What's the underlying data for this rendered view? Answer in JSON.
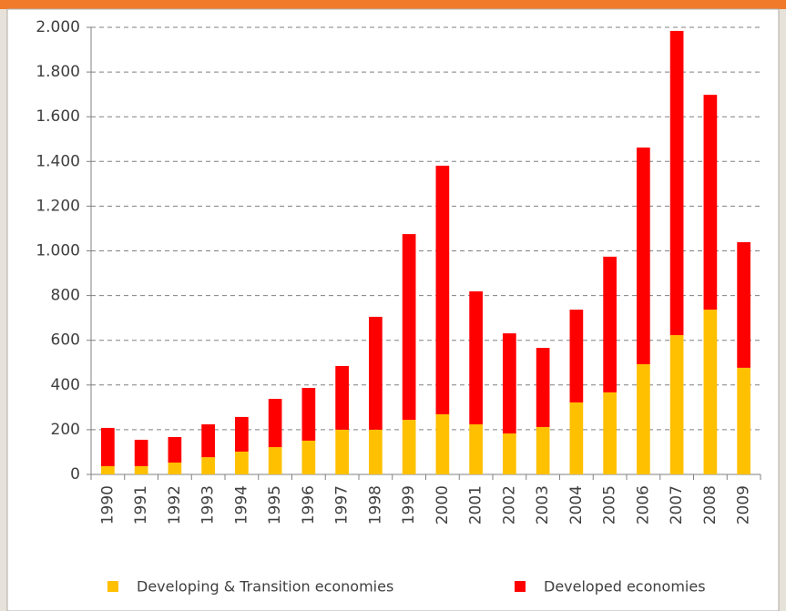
{
  "chart_data": {
    "type": "stacked_bar",
    "categories": [
      "1990",
      "1991",
      "1992",
      "1993",
      "1994",
      "1995",
      "1996",
      "1997",
      "1998",
      "1999",
      "2000",
      "2001",
      "2002",
      "2003",
      "2004",
      "2005",
      "2006",
      "2007",
      "2008",
      "2009"
    ],
    "series": [
      {
        "name": "Developing & Transition economies",
        "color": "#ffc000",
        "values": [
          37,
          37,
          53,
          77,
          102,
          122,
          151,
          200,
          200,
          244,
          269,
          224,
          183,
          212,
          322,
          367,
          493,
          623,
          737,
          477
        ]
      },
      {
        "name": "Developed economies",
        "color": "#ff0000",
        "values": [
          171,
          118,
          114,
          147,
          155,
          216,
          236,
          285,
          505,
          831,
          1112,
          595,
          448,
          354,
          415,
          607,
          969,
          1361,
          961,
          562
        ]
      }
    ],
    "ylim": [
      0,
      2000
    ],
    "yticks": [
      0,
      200,
      400,
      600,
      800,
      {
        "value": 1000,
        "label": "1.000"
      },
      {
        "value": 1200,
        "label": "1.200"
      },
      {
        "value": 1400,
        "label": "1.400"
      },
      {
        "value": 1600,
        "label": "1.600"
      },
      {
        "value": 1800,
        "label": "1.800"
      },
      {
        "value": 2000,
        "label": "2.000"
      }
    ],
    "grid": true,
    "legend": "bottom"
  }
}
